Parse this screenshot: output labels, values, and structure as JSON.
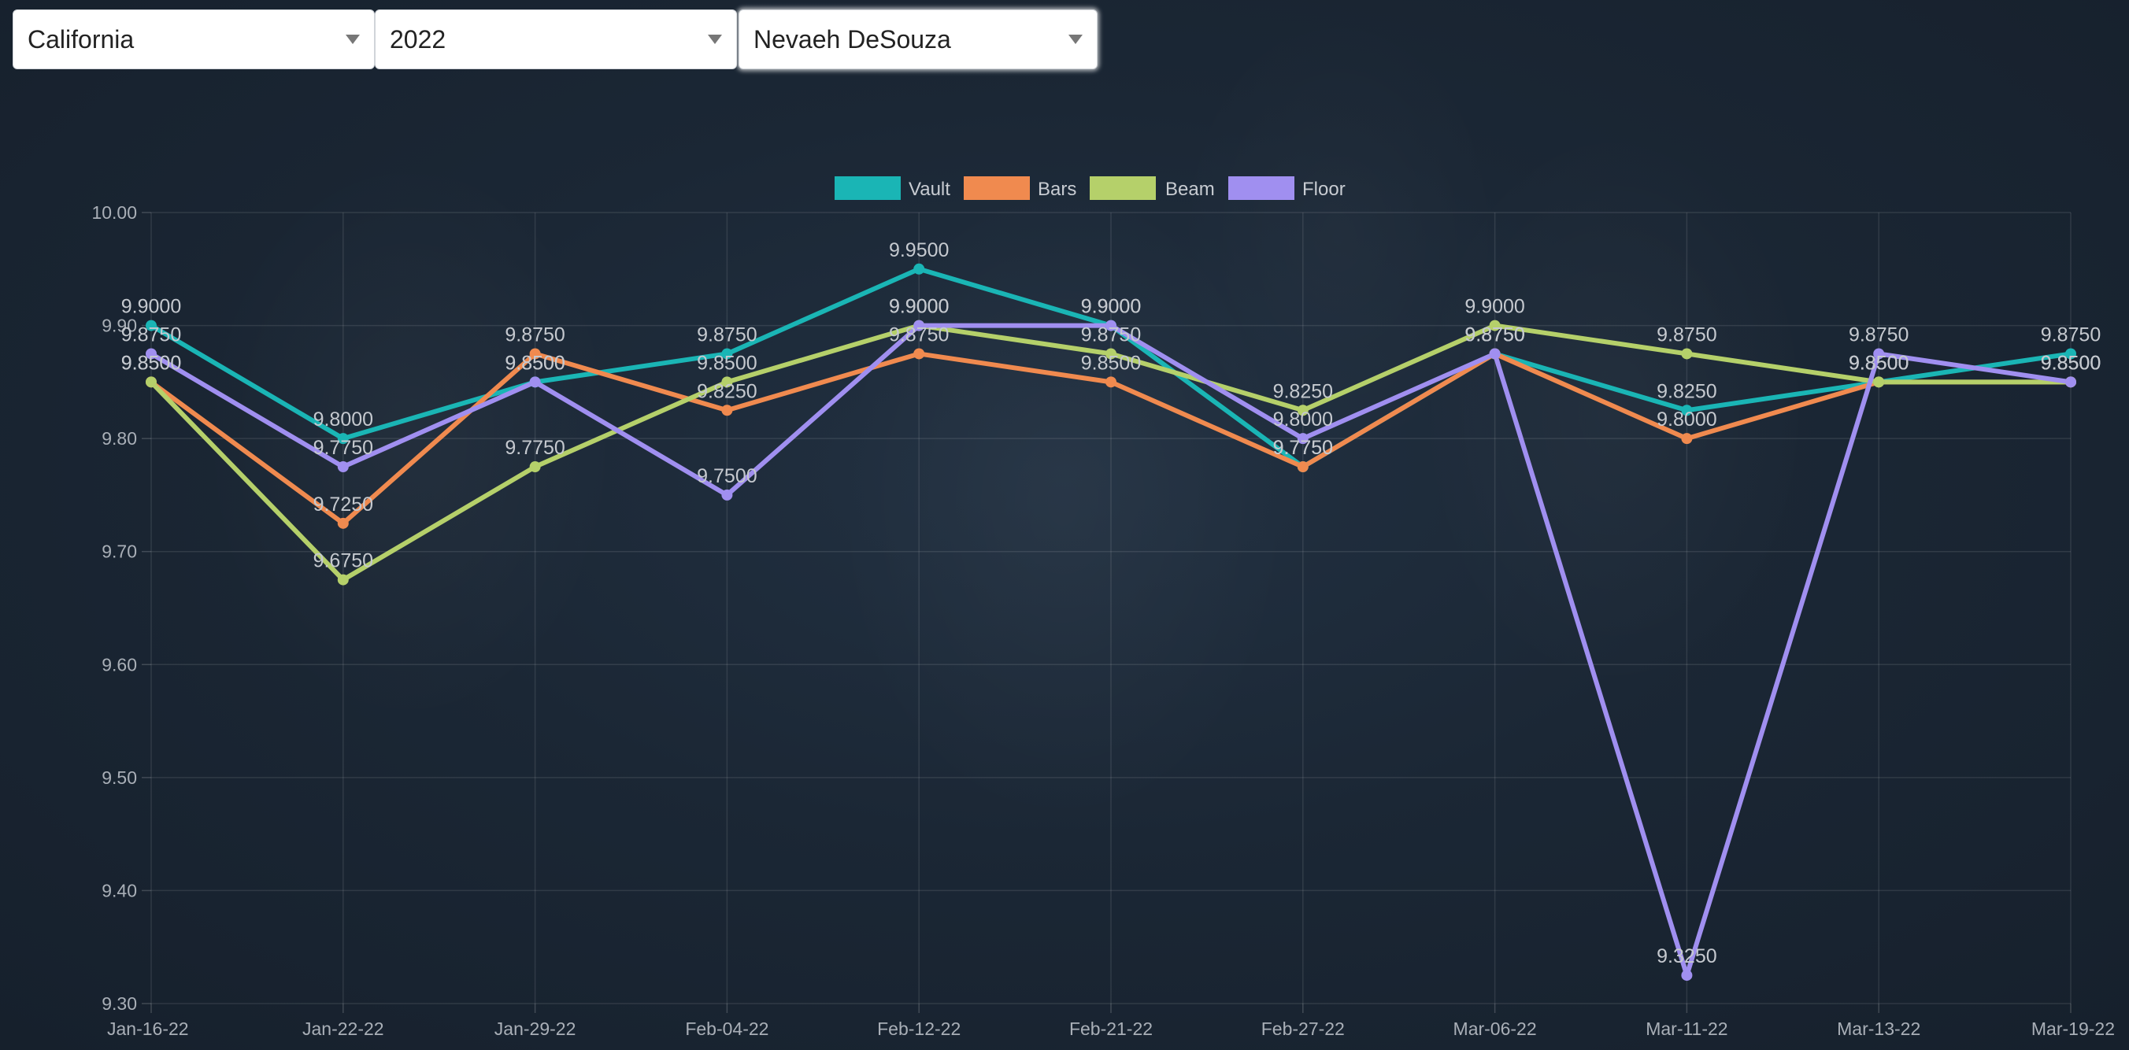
{
  "filters": {
    "state": "California",
    "year": "2022",
    "athlete": "Nevaeh DeSouza"
  },
  "chart_data": {
    "type": "line",
    "title": "",
    "xlabel": "",
    "ylabel": "",
    "ylim": [
      9.3,
      10.0
    ],
    "y_ticks": [
      "9.30",
      "9.40",
      "9.50",
      "9.60",
      "9.70",
      "9.80",
      "9.90",
      "10.00"
    ],
    "legend_position": "top-center",
    "grid": true,
    "categories": [
      "Jan-16-22",
      "Jan-22-22",
      "Jan-29-22",
      "Feb-04-22",
      "Feb-12-22",
      "Feb-21-22",
      "Feb-27-22",
      "Mar-06-22",
      "Mar-11-22",
      "Mar-13-22",
      "Mar-19-22"
    ],
    "series": [
      {
        "name": "Vault",
        "color": "#1ab5b5",
        "values": [
          9.9,
          9.8,
          9.85,
          9.875,
          9.95,
          9.9,
          9.775,
          9.875,
          9.825,
          9.85,
          9.875
        ]
      },
      {
        "name": "Bars",
        "color": "#f08a4f",
        "values": [
          9.85,
          9.725,
          9.875,
          9.825,
          9.875,
          9.85,
          9.775,
          9.875,
          9.8,
          9.85,
          9.85
        ]
      },
      {
        "name": "Beam",
        "color": "#b5d06a",
        "values": [
          9.85,
          9.675,
          9.775,
          9.85,
          9.9,
          9.875,
          9.825,
          9.9,
          9.875,
          9.85,
          9.85
        ]
      },
      {
        "name": "Floor",
        "color": "#a08ff0",
        "values": [
          9.875,
          9.775,
          9.85,
          9.75,
          9.9,
          9.9,
          9.8,
          9.875,
          9.325,
          9.875,
          9.85
        ]
      }
    ]
  }
}
